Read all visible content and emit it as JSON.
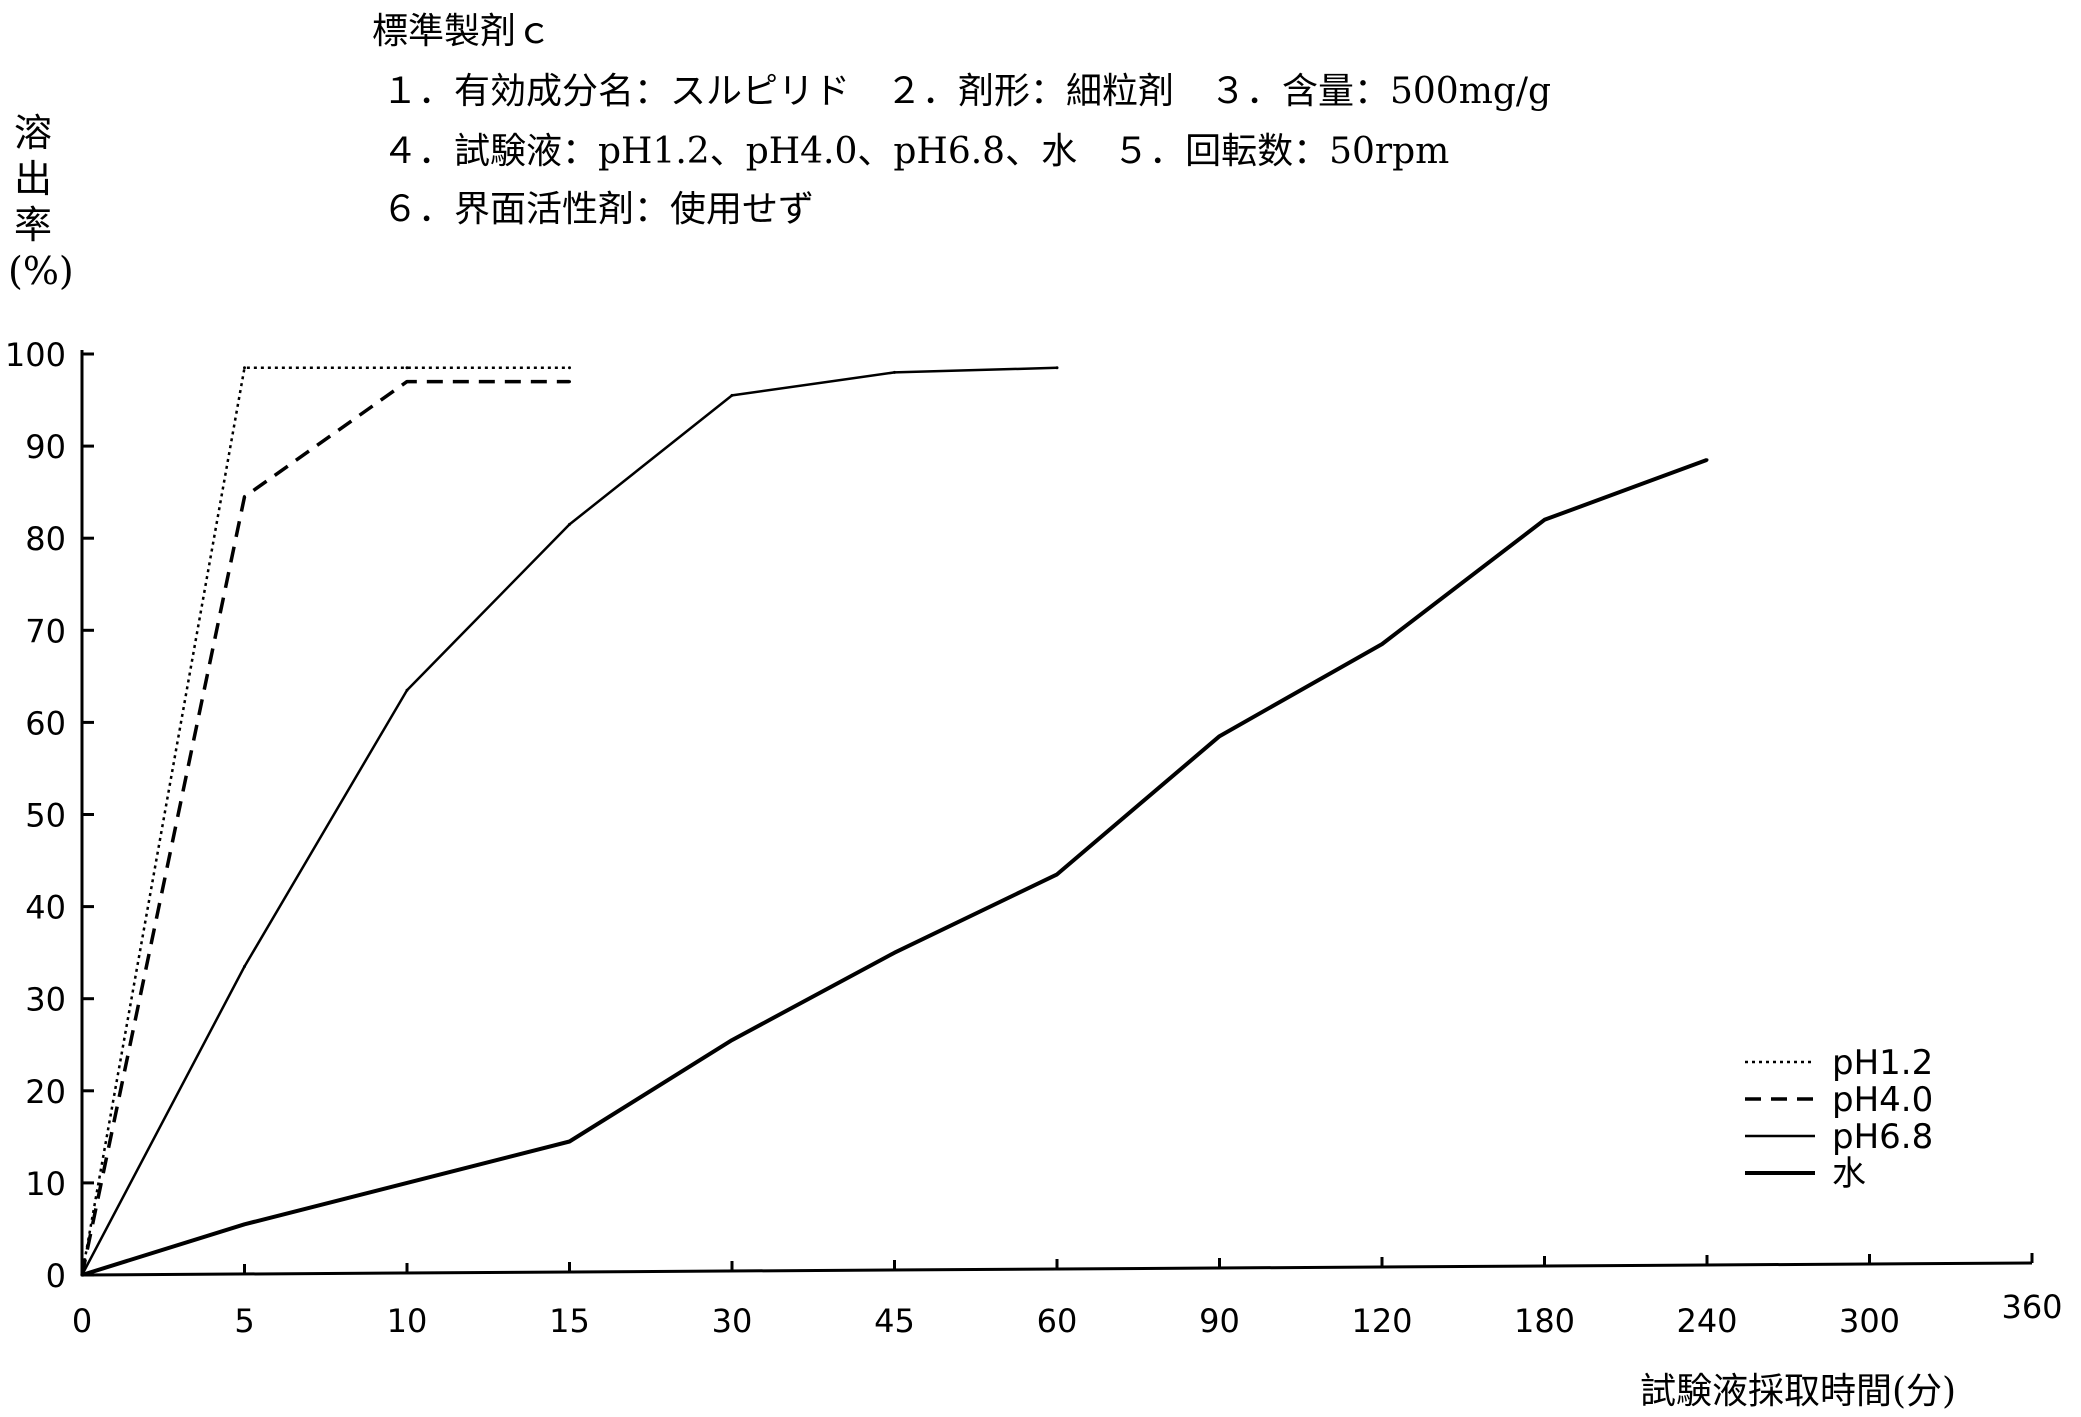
{
  "header": {
    "title": "標準製剤ｃ",
    "line1": "１．有効成分名：スルピリド　２．剤形：細粒剤　３．含量：500mg/g",
    "line2": "４．試験液：pH1.2、pH4.0、pH6.8、水　５．回転数：50rpm",
    "line3": "６．界面活性剤：使用せず"
  },
  "chart_data": {
    "type": "line",
    "title": "",
    "ylabel": "溶出率(%)",
    "xlabel": "試験液採取時間(分)",
    "categories": [
      "0",
      "5",
      "10",
      "15",
      "30",
      "45",
      "60",
      "90",
      "120",
      "180",
      "240",
      "300",
      "360"
    ],
    "y_ticks": [
      "0",
      "10",
      "20",
      "30",
      "40",
      "50",
      "60",
      "70",
      "80",
      "90",
      "100"
    ],
    "ylim": [
      0,
      100
    ],
    "x_scale": "categorical (equally spaced sampling times)",
    "grid": false,
    "legend_position": "bottom-right",
    "series": [
      {
        "name": "pH1.2",
        "style": "dotted",
        "x": [
          "0",
          "5",
          "10",
          "15"
        ],
        "values": [
          0,
          98.5,
          98.5,
          98.5
        ]
      },
      {
        "name": "pH4.0",
        "style": "dashed",
        "x": [
          "0",
          "5",
          "10",
          "15"
        ],
        "values": [
          0,
          84.5,
          97,
          97
        ]
      },
      {
        "name": "pH6.8",
        "style": "thin",
        "x": [
          "0",
          "5",
          "10",
          "15",
          "30",
          "45",
          "60"
        ],
        "values": [
          0,
          33.5,
          63.5,
          81.5,
          95.5,
          98,
          98.5
        ]
      },
      {
        "name": "水",
        "style": "thick",
        "x": [
          "0",
          "5",
          "10",
          "15",
          "30",
          "45",
          "60",
          "90",
          "120",
          "180",
          "240"
        ],
        "values": [
          0,
          5.5,
          10,
          14.5,
          25.5,
          35,
          43.5,
          58.5,
          68.5,
          82,
          88.5
        ]
      }
    ]
  }
}
